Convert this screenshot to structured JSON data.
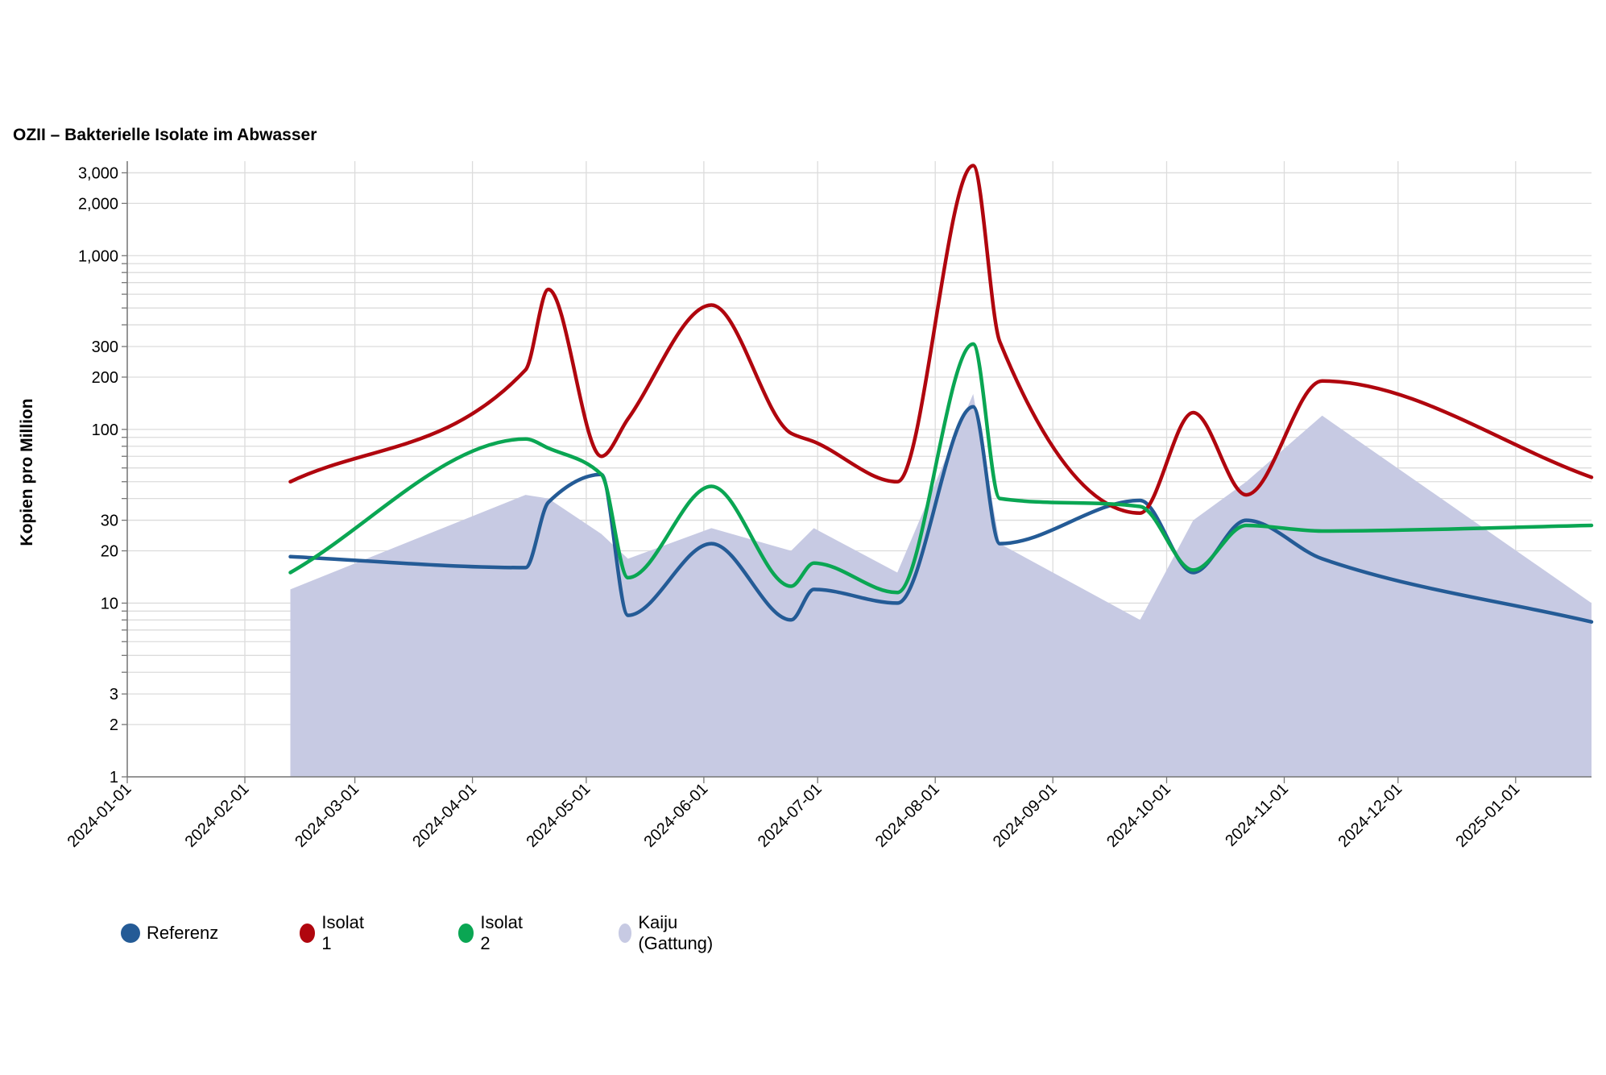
{
  "chart_data": {
    "type": "line",
    "title": "OZII – Bakterielle Isolate im Abwasser",
    "xlabel": "",
    "ylabel": "Kopien pro Million",
    "yscale": "log",
    "ylim": [
      1,
      3500
    ],
    "xlim": [
      "2024-01-01",
      "2025-01-21"
    ],
    "grid": true,
    "legend_position": "bottom-left",
    "x_ticks": [
      "2024-01-01",
      "2024-02-01",
      "2024-03-01",
      "2024-04-01",
      "2024-05-01",
      "2024-06-01",
      "2024-07-01",
      "2024-08-01",
      "2024-09-01",
      "2024-10-01",
      "2024-11-01",
      "2024-12-01",
      "2025-01-01"
    ],
    "y_tick_labels": [
      {
        "value": 1,
        "label": "1"
      },
      {
        "value": 2,
        "label": "2"
      },
      {
        "value": 3,
        "label": "3"
      },
      {
        "value": 10,
        "label": "10"
      },
      {
        "value": 20,
        "label": "20"
      },
      {
        "value": 30,
        "label": "30"
      },
      {
        "value": 100,
        "label": "100"
      },
      {
        "value": 200,
        "label": "200"
      },
      {
        "value": 300,
        "label": "300"
      },
      {
        "value": 1000,
        "label": "1,000"
      },
      {
        "value": 2000,
        "label": "2,000"
      },
      {
        "value": 3000,
        "label": "3,000"
      }
    ],
    "series": [
      {
        "name": "Referenz",
        "kind": "line",
        "color": "#245b96",
        "points": [
          [
            "2024-02-13",
            18.5
          ],
          [
            "2024-04-15",
            16
          ],
          [
            "2024-04-21",
            38
          ],
          [
            "2024-05-05",
            55
          ],
          [
            "2024-05-12",
            8.5
          ],
          [
            "2024-06-03",
            22
          ],
          [
            "2024-06-24",
            8
          ],
          [
            "2024-06-30",
            12
          ],
          [
            "2024-07-22",
            10
          ],
          [
            "2024-08-11",
            135
          ],
          [
            "2024-08-18",
            22
          ],
          [
            "2024-09-24",
            39
          ],
          [
            "2024-10-08",
            15
          ],
          [
            "2024-10-22",
            30
          ],
          [
            "2024-11-11",
            18
          ],
          [
            "2025-01-21",
            7.8
          ]
        ]
      },
      {
        "name": "Isolat 1",
        "kind": "line",
        "color": "#b0060e",
        "points": [
          [
            "2024-02-13",
            50
          ],
          [
            "2024-04-15",
            220
          ],
          [
            "2024-04-21",
            640
          ],
          [
            "2024-05-05",
            70
          ],
          [
            "2024-05-12",
            115
          ],
          [
            "2024-06-03",
            520
          ],
          [
            "2024-06-24",
            95
          ],
          [
            "2024-06-30",
            85
          ],
          [
            "2024-07-22",
            50
          ],
          [
            "2024-08-11",
            3300
          ],
          [
            "2024-08-18",
            320
          ],
          [
            "2024-09-24",
            33
          ],
          [
            "2024-10-08",
            125
          ],
          [
            "2024-10-22",
            42
          ],
          [
            "2024-11-11",
            190
          ],
          [
            "2025-01-21",
            53
          ]
        ]
      },
      {
        "name": "Isolat 2",
        "kind": "line",
        "color": "#0aa653",
        "points": [
          [
            "2024-02-13",
            15
          ],
          [
            "2024-04-15",
            88
          ],
          [
            "2024-04-21",
            78
          ],
          [
            "2024-05-05",
            55
          ],
          [
            "2024-05-12",
            14
          ],
          [
            "2024-06-03",
            47
          ],
          [
            "2024-06-24",
            12.5
          ],
          [
            "2024-06-30",
            17
          ],
          [
            "2024-07-22",
            11.5
          ],
          [
            "2024-08-11",
            310
          ],
          [
            "2024-08-18",
            40
          ],
          [
            "2024-09-24",
            36
          ],
          [
            "2024-10-08",
            15.5
          ],
          [
            "2024-10-22",
            28
          ],
          [
            "2024-11-11",
            26
          ],
          [
            "2025-01-21",
            28
          ]
        ]
      },
      {
        "name": "Kaiju (Gattung)",
        "kind": "area",
        "color": "#c7cae3",
        "points": [
          [
            "2024-02-13",
            12
          ],
          [
            "2024-04-15",
            42
          ],
          [
            "2024-04-21",
            40
          ],
          [
            "2024-05-05",
            25
          ],
          [
            "2024-05-12",
            18
          ],
          [
            "2024-06-03",
            27
          ],
          [
            "2024-06-24",
            20
          ],
          [
            "2024-06-30",
            27
          ],
          [
            "2024-07-22",
            15
          ],
          [
            "2024-08-11",
            160
          ],
          [
            "2024-08-18",
            22
          ],
          [
            "2024-09-24",
            8
          ],
          [
            "2024-10-08",
            30
          ],
          [
            "2024-10-22",
            50
          ],
          [
            "2024-11-11",
            120
          ],
          [
            "2025-01-21",
            10
          ]
        ]
      }
    ]
  }
}
